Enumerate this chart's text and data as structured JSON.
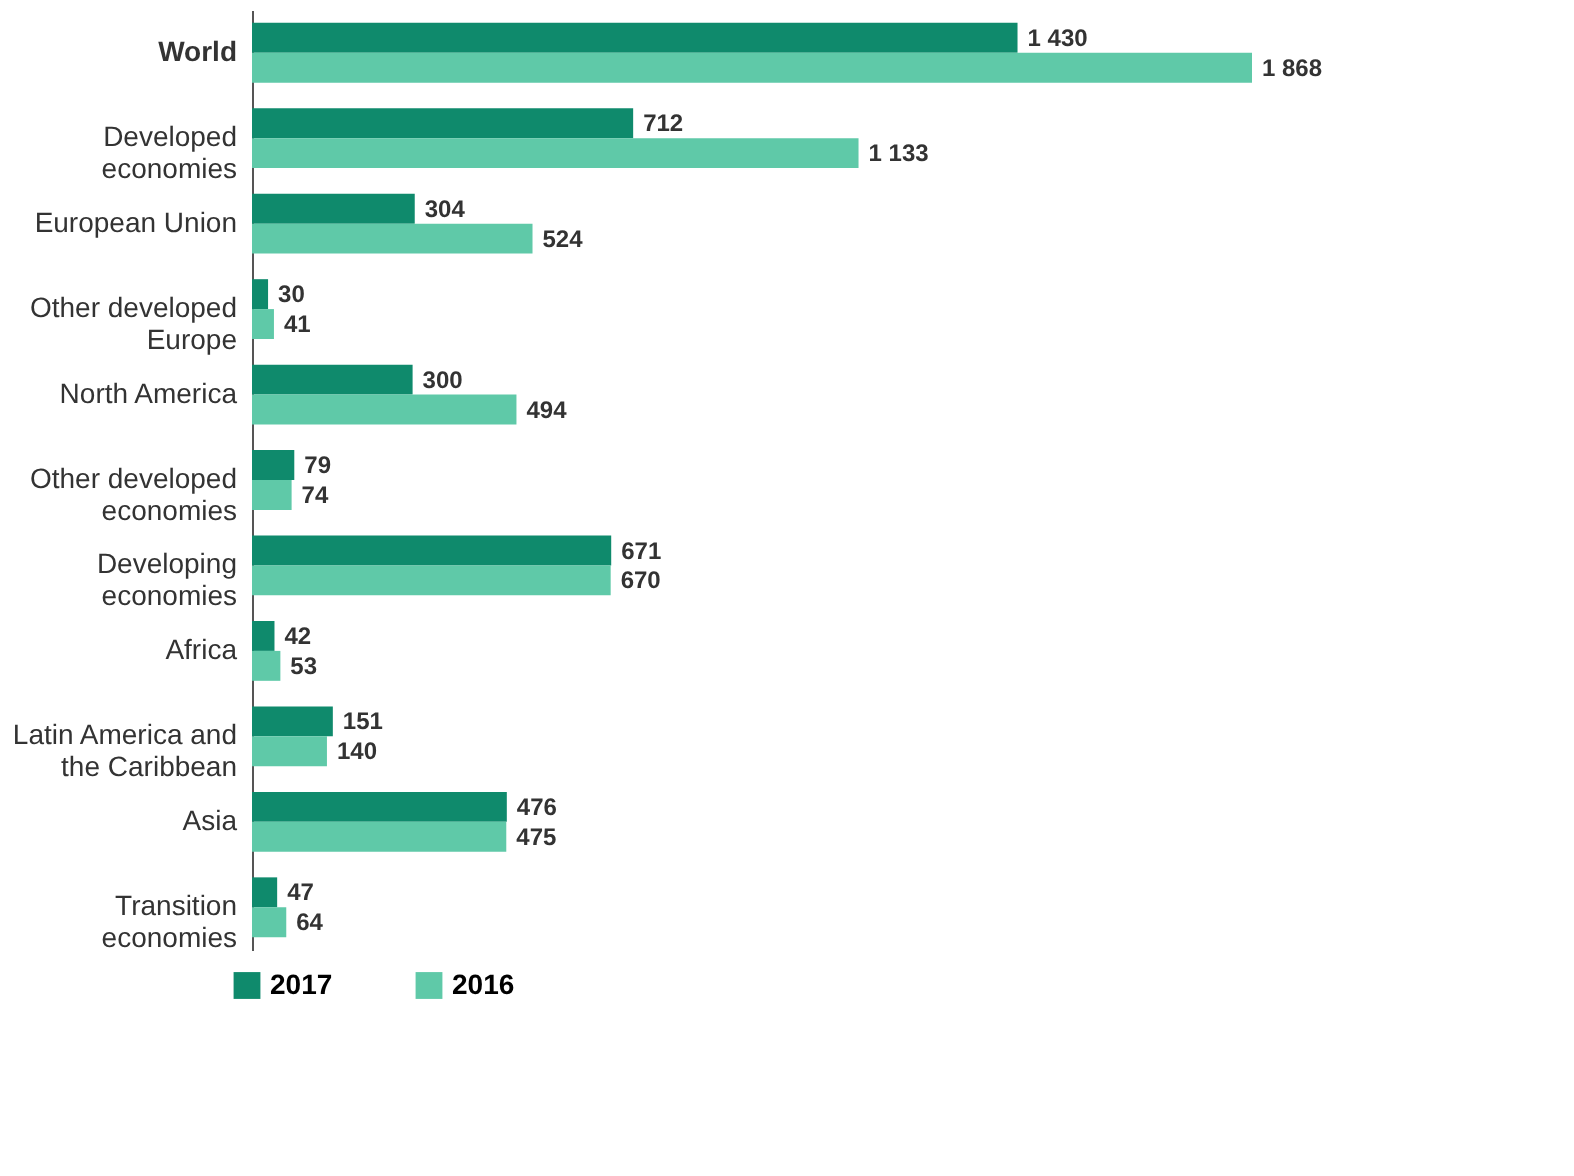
{
  "chart_data": {
    "type": "bar",
    "orientation": "horizontal",
    "legend": "bottom left",
    "categories": [
      "World",
      "Developed\neconomies",
      "European Union",
      "Other developed\nEurope",
      "North America",
      "Other developed\neconomies",
      "Developing\neconomies",
      "Africa",
      "Latin America and\nthe Caribbean",
      "Asia",
      "Transition\neconomies"
    ],
    "series": [
      {
        "name": "2017",
        "color": "#0f8a6c",
        "values": [
          1430,
          712,
          304,
          30,
          300,
          79,
          671,
          42,
          151,
          476,
          47
        ],
        "value_labels": [
          "1 430",
          "712",
          "304",
          "30",
          "300",
          "79",
          "671",
          "42",
          "151",
          "476",
          "47"
        ]
      },
      {
        "name": "2016",
        "color": "#5fc9a8",
        "values": [
          1868,
          1133,
          524,
          41,
          494,
          74,
          670,
          53,
          140,
          475,
          64
        ],
        "value_labels": [
          "1 868",
          "1 133",
          "524",
          "41",
          "494",
          "74",
          "670",
          "53",
          "140",
          "475",
          "64"
        ]
      }
    ]
  }
}
